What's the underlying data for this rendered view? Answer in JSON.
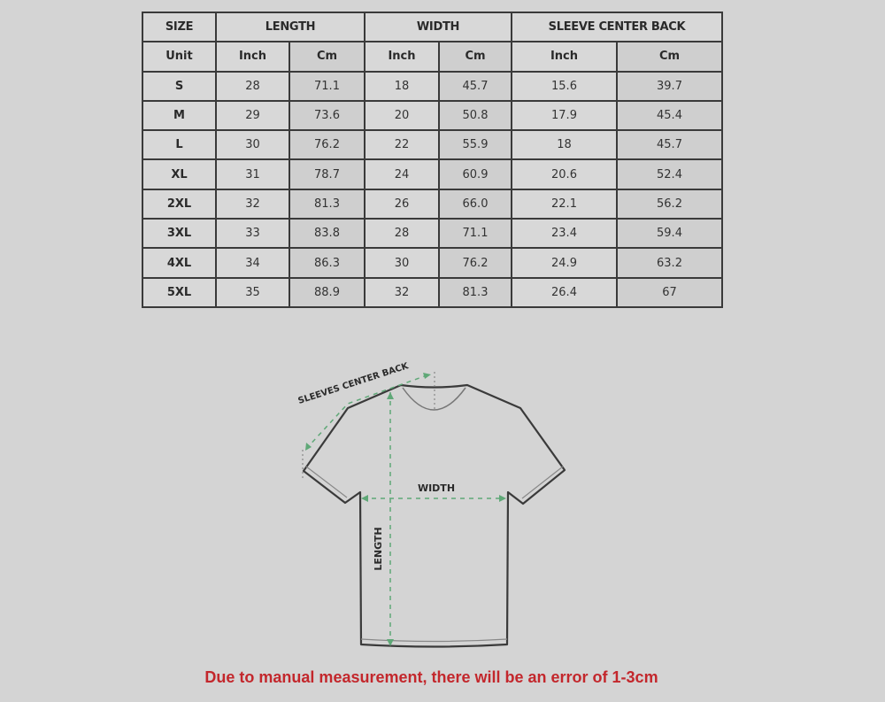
{
  "table": {
    "headers": [
      "SIZE",
      "LENGTH",
      "WIDTH",
      "SLEEVE CENTER BACK"
    ],
    "unit_row": [
      "Unit",
      "Inch",
      "Cm",
      "Inch",
      "Cm",
      "Inch",
      "Cm"
    ],
    "rows": [
      [
        "S",
        "28",
        "71.1",
        "18",
        "45.7",
        "15.6",
        "39.7"
      ],
      [
        "M",
        "29",
        "73.6",
        "20",
        "50.8",
        "17.9",
        "45.4"
      ],
      [
        "L",
        "30",
        "76.2",
        "22",
        "55.9",
        "18",
        "45.7"
      ],
      [
        "XL",
        "31",
        "78.7",
        "24",
        "60.9",
        "20.6",
        "52.4"
      ],
      [
        "2XL",
        "32",
        "81.3",
        "26",
        "66.0",
        "22.1",
        "56.2"
      ],
      [
        "3XL",
        "33",
        "83.8",
        "28",
        "71.1",
        "23.4",
        "59.4"
      ],
      [
        "4XL",
        "34",
        "86.3",
        "30",
        "76.2",
        "24.9",
        "63.2"
      ],
      [
        "5XL",
        "35",
        "88.9",
        "32",
        "81.3",
        "26.4",
        "67"
      ]
    ]
  },
  "diagram": {
    "sleeve_label": "SLEEVES CENTER BACK",
    "width_label": "WIDTH",
    "length_label": "LENGTH",
    "measure_color": "#5fa877"
  },
  "note": "Due to manual measurement, there will be an error of 1-3cm",
  "colors": {
    "note": "#c3272c",
    "background": "#d4d4d4"
  }
}
